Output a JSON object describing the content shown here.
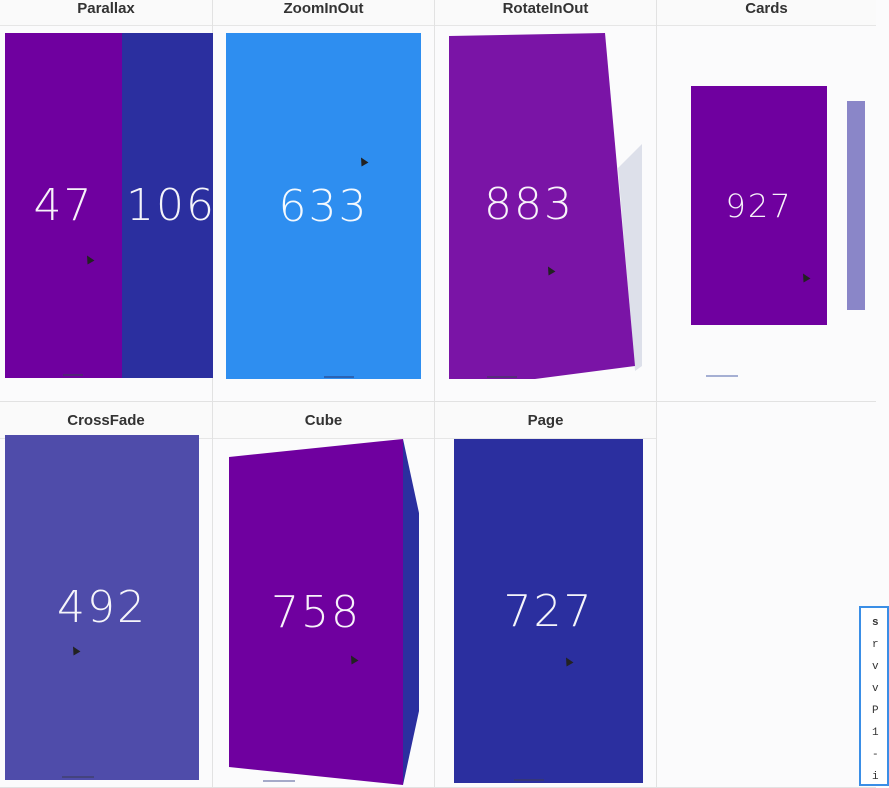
{
  "demos": {
    "parallax": {
      "title": "Parallax",
      "num_a": "47",
      "num_b": "106",
      "color_a": "#6f009f",
      "color_b": "#2b2f9f"
    },
    "zoominout": {
      "title": "ZoomInOut",
      "num": "633",
      "color": "#2e8ef0"
    },
    "rotateinout": {
      "title": "RotateInOut",
      "num": "883",
      "color": "#7a14a6"
    },
    "cards": {
      "title": "Cards",
      "num": "927",
      "color": "#6f009f",
      "side_color": "#8a86c8"
    },
    "crossfade": {
      "title": "CrossFade",
      "num": "492",
      "color": "#4f4caa"
    },
    "cube": {
      "title": "Cube",
      "num": "758",
      "color": "#6f009f",
      "side_color": "#2b2f9f"
    },
    "page": {
      "title": "Page",
      "num": "727",
      "color": "#2b2f9f"
    }
  },
  "popup": {
    "lines": [
      "s",
      "r",
      "v",
      "v",
      "P",
      "1",
      "-",
      "i"
    ]
  }
}
